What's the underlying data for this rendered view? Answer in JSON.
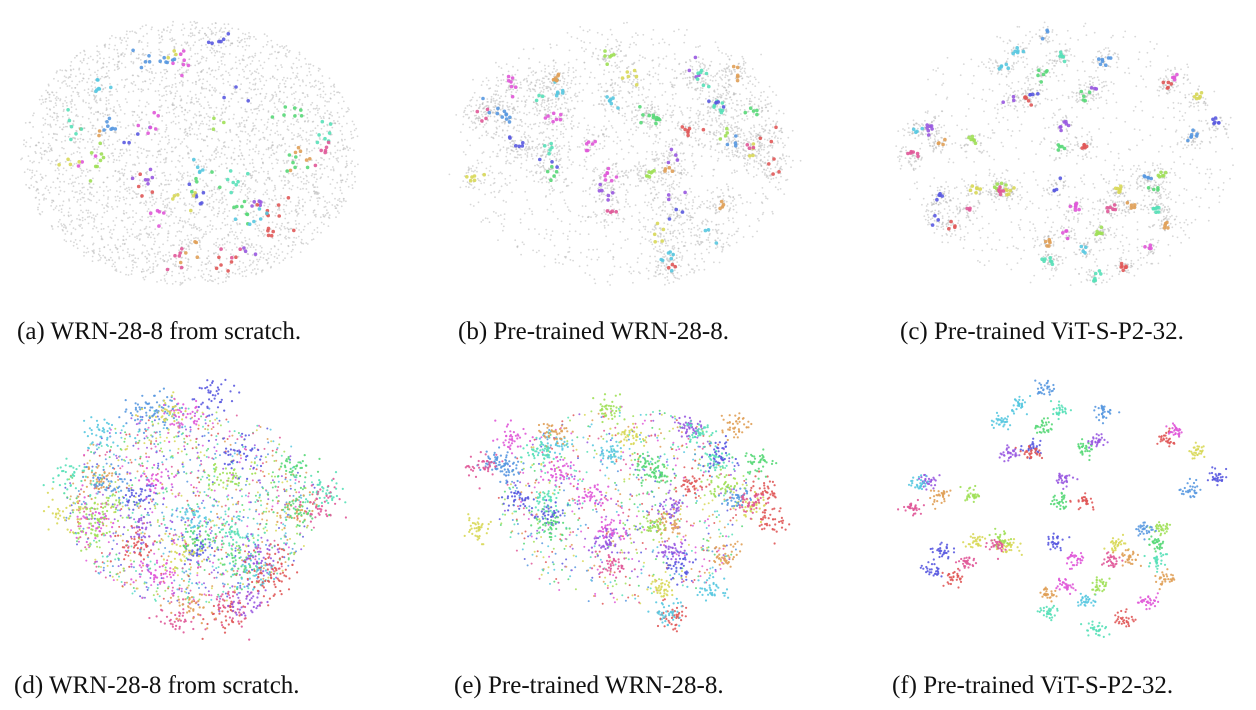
{
  "chart_data": [
    {
      "type": "scatter",
      "caption": "(a) WRN-28-8 from scratch.",
      "background_gray": true,
      "cluster_layout": "mixed-blob",
      "n_clusters": 40
    },
    {
      "type": "scatter",
      "caption": "(b) Pre-trained WRN-28-8.",
      "background_gray": true,
      "cluster_layout": "partially-separated",
      "n_clusters": 45
    },
    {
      "type": "scatter",
      "caption": "(c) Pre-trained ViT-S-P2-32.",
      "background_gray": true,
      "cluster_layout": "well-separated",
      "n_clusters": 50
    },
    {
      "type": "scatter",
      "caption": "(d) WRN-28-8 from scratch.",
      "background_gray": false,
      "cluster_layout": "mixed-blob",
      "n_clusters": 40
    },
    {
      "type": "scatter",
      "caption": "(e) Pre-trained WRN-28-8.",
      "background_gray": false,
      "cluster_layout": "partially-separated",
      "n_clusters": 45
    },
    {
      "type": "scatter",
      "caption": "(f) Pre-trained ViT-S-P2-32.",
      "background_gray": false,
      "cluster_layout": "well-separated",
      "n_clusters": 50
    }
  ],
  "colors": {
    "gray_points": "#b8b8b8",
    "palette": [
      "#e05858",
      "#5a5ae0",
      "#58d878",
      "#e058d8",
      "#58c8e0",
      "#d8d858",
      "#9858e0",
      "#e0a058",
      "#58e0b8",
      "#a0e058",
      "#e05898",
      "#5898e0"
    ]
  }
}
